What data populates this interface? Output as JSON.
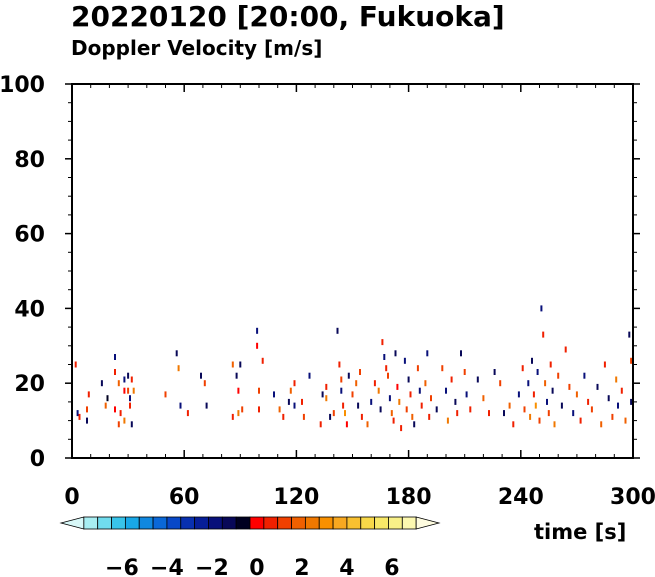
{
  "header": {
    "title": "20220120 [20:00, Fukuoka]",
    "subtitle": "Doppler Velocity [m/s]"
  },
  "chart_data": {
    "type": "heatmap",
    "xlabel": "time [s]",
    "ylabel": "",
    "xlim": [
      0,
      300
    ],
    "ylim": [
      0,
      100
    ],
    "x_ticks": [
      0,
      60,
      120,
      180,
      240,
      300
    ],
    "y_ticks": [
      0,
      20,
      40,
      60,
      80,
      100
    ],
    "x_tick_labels": [
      "0",
      "60",
      "120",
      "180",
      "240",
      "300"
    ],
    "y_tick_labels": [
      "0",
      "20",
      "40",
      "60",
      "80",
      "100"
    ],
    "grid": false,
    "colorbar": {
      "orientation": "horizontal",
      "placement": "bottom-left",
      "range": [
        -8,
        8
      ],
      "tick_labels": [
        "−6",
        "−4",
        "−2",
        "0",
        "2",
        "4",
        "6"
      ],
      "tick_values": [
        -6,
        -4,
        -2,
        0,
        2,
        4,
        6
      ],
      "colors": [
        "#d8f8f8",
        "#a8eef2",
        "#70dcee",
        "#38c4ea",
        "#18a8e8",
        "#1088e0",
        "#0a68d8",
        "#0848c8",
        "#0830b0",
        "#061e98",
        "#08107a",
        "#080858",
        "#000020",
        "#ff0000",
        "#f02000",
        "#f04000",
        "#f06000",
        "#f07800",
        "#f89000",
        "#f8a820",
        "#f8c030",
        "#f8d848",
        "#f8e868",
        "#f8f088",
        "#fcf8b0",
        "#fefce0"
      ]
    },
    "points": [
      [
        2,
        25,
        0.8
      ],
      [
        3,
        12,
        -1.5
      ],
      [
        4,
        11,
        1.2
      ],
      [
        8,
        13,
        1.5
      ],
      [
        8,
        10,
        -0.8
      ],
      [
        9,
        17,
        1.0
      ],
      [
        16,
        20,
        -1.2
      ],
      [
        18,
        14,
        2.0
      ],
      [
        19,
        16,
        -0.6
      ],
      [
        23,
        27,
        -1.5
      ],
      [
        23,
        23,
        0.8
      ],
      [
        23,
        13,
        0.6
      ],
      [
        25,
        20,
        2.4
      ],
      [
        25,
        9,
        1.8
      ],
      [
        26,
        12,
        1.0
      ],
      [
        28,
        21,
        -1.8
      ],
      [
        28,
        18,
        0.4
      ],
      [
        28,
        10,
        3.0
      ],
      [
        30,
        22,
        -1.2
      ],
      [
        30,
        18,
        1.6
      ],
      [
        31,
        16,
        -1.8
      ],
      [
        31,
        14,
        0.8
      ],
      [
        32,
        21,
        1.2
      ],
      [
        32,
        9,
        -1.0
      ],
      [
        33,
        18,
        2.8
      ],
      [
        50,
        17,
        1.5
      ],
      [
        56,
        28,
        -0.8
      ],
      [
        57,
        24,
        2.5
      ],
      [
        58,
        14,
        -1.5
      ],
      [
        62,
        12,
        1.0
      ],
      [
        69,
        22,
        -0.7
      ],
      [
        71,
        20,
        1.4
      ],
      [
        72,
        14,
        -1.0
      ],
      [
        86,
        25,
        2.2
      ],
      [
        86,
        11,
        1.0
      ],
      [
        88,
        22,
        -1.1
      ],
      [
        89,
        18,
        0.6
      ],
      [
        89,
        12,
        2.6
      ],
      [
        90,
        25,
        -1.2
      ],
      [
        91,
        13,
        1.8
      ],
      [
        99,
        34,
        -1.5
      ],
      [
        99,
        30,
        0.5
      ],
      [
        100,
        18,
        1.6
      ],
      [
        100,
        13,
        0.9
      ],
      [
        102,
        26,
        1.2
      ],
      [
        108,
        17,
        -1.3
      ],
      [
        111,
        13,
        2.0
      ],
      [
        113,
        11,
        1.1
      ],
      [
        116,
        15,
        -0.9
      ],
      [
        117,
        18,
        2.4
      ],
      [
        119,
        20,
        1.0
      ],
      [
        119,
        14,
        -1.4
      ],
      [
        123,
        15,
        0.7
      ],
      [
        124,
        11,
        1.5
      ],
      [
        127,
        22,
        -1.6
      ],
      [
        133,
        9,
        0.9
      ],
      [
        134,
        17,
        -1.1
      ],
      [
        136,
        19,
        1.2
      ],
      [
        136,
        16,
        2.7
      ],
      [
        138,
        11,
        -1.0
      ],
      [
        140,
        12,
        1.8
      ],
      [
        142,
        34,
        -1.2
      ],
      [
        143,
        25,
        0.7
      ],
      [
        144,
        21,
        1.8
      ],
      [
        144,
        18,
        -1.5
      ],
      [
        145,
        14,
        1.0
      ],
      [
        146,
        12,
        3.1
      ],
      [
        147,
        9,
        0.5
      ],
      [
        148,
        22,
        -1.2
      ],
      [
        150,
        17,
        1.4
      ],
      [
        152,
        20,
        2.0
      ],
      [
        153,
        14,
        -0.9
      ],
      [
        154,
        23,
        1.3
      ],
      [
        155,
        11,
        0.8
      ],
      [
        158,
        9,
        2.2
      ],
      [
        160,
        15,
        -1.6
      ],
      [
        162,
        20,
        1.0
      ],
      [
        164,
        18,
        2.5
      ],
      [
        165,
        13,
        -1.0
      ],
      [
        166,
        31,
        1.2
      ],
      [
        167,
        27,
        -1.7
      ],
      [
        168,
        24,
        0.9
      ],
      [
        169,
        22,
        1.6
      ],
      [
        170,
        16,
        -1.4
      ],
      [
        171,
        12,
        2.3
      ],
      [
        172,
        10,
        1.0
      ],
      [
        173,
        28,
        -1.2
      ],
      [
        174,
        19,
        0.5
      ],
      [
        175,
        15,
        2.8
      ],
      [
        176,
        8,
        1.1
      ],
      [
        178,
        26,
        -1.5
      ],
      [
        179,
        13,
        1.7
      ],
      [
        180,
        21,
        -1.1
      ],
      [
        181,
        17,
        0.9
      ],
      [
        182,
        11,
        2.1
      ],
      [
        183,
        9,
        -0.9
      ],
      [
        185,
        24,
        1.3
      ],
      [
        186,
        18,
        -1.6
      ],
      [
        187,
        14,
        1.0
      ],
      [
        189,
        20,
        2.4
      ],
      [
        190,
        28,
        -1.3
      ],
      [
        191,
        11,
        0.7
      ],
      [
        192,
        16,
        1.5
      ],
      [
        195,
        13,
        -1.0
      ],
      [
        198,
        24,
        1.8
      ],
      [
        200,
        18,
        -1.4
      ],
      [
        201,
        10,
        2.6
      ],
      [
        203,
        21,
        0.8
      ],
      [
        205,
        15,
        -1.2
      ],
      [
        206,
        12,
        1.1
      ],
      [
        208,
        28,
        -0.8
      ],
      [
        210,
        23,
        1.6
      ],
      [
        211,
        17,
        -1.5
      ],
      [
        213,
        13,
        0.9
      ],
      [
        217,
        21,
        -1.0
      ],
      [
        220,
        16,
        2.3
      ],
      [
        223,
        12,
        1.2
      ],
      [
        226,
        23,
        -0.9
      ],
      [
        229,
        20,
        1.5
      ],
      [
        231,
        12,
        -1.1
      ],
      [
        234,
        14,
        2.0
      ],
      [
        236,
        9,
        1.1
      ],
      [
        239,
        17,
        -1.3
      ],
      [
        241,
        24,
        0.8
      ],
      [
        242,
        13,
        1.7
      ],
      [
        244,
        20,
        -1.4
      ],
      [
        245,
        11,
        2.5
      ],
      [
        246,
        26,
        -1.2
      ],
      [
        247,
        17,
        1.0
      ],
      [
        248,
        14,
        3.2
      ],
      [
        249,
        23,
        -1.6
      ],
      [
        250,
        10,
        1.4
      ],
      [
        251,
        40,
        -1.3
      ],
      [
        252,
        33,
        0.7
      ],
      [
        253,
        20,
        2.2
      ],
      [
        254,
        15,
        -1.5
      ],
      [
        255,
        12,
        1.8
      ],
      [
        256,
        25,
        1.0
      ],
      [
        257,
        18,
        -1.2
      ],
      [
        258,
        9,
        2.6
      ],
      [
        260,
        22,
        1.4
      ],
      [
        262,
        14,
        -1.0
      ],
      [
        264,
        29,
        0.9
      ],
      [
        266,
        19,
        1.7
      ],
      [
        268,
        12,
        -1.3
      ],
      [
        270,
        17,
        2.4
      ],
      [
        272,
        10,
        1.0
      ],
      [
        274,
        22,
        -1.5
      ],
      [
        276,
        15,
        0.8
      ],
      [
        278,
        13,
        1.8
      ],
      [
        281,
        19,
        -1.2
      ],
      [
        283,
        9,
        2.1
      ],
      [
        285,
        25,
        0.7
      ],
      [
        287,
        16,
        -1.1
      ],
      [
        289,
        11,
        1.5
      ],
      [
        291,
        21,
        2.8
      ],
      [
        292,
        14,
        -1.4
      ],
      [
        294,
        18,
        1.0
      ],
      [
        296,
        10,
        2.2
      ],
      [
        298,
        33,
        -0.9
      ],
      [
        299,
        26,
        1.3
      ],
      [
        299,
        15,
        -1.2
      ]
    ]
  }
}
